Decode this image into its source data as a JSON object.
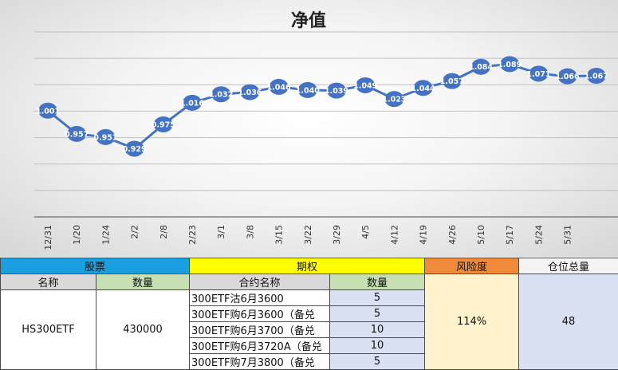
{
  "chart_data": {
    "type": "line",
    "title": "净值",
    "categories": [
      "12/31",
      "1/20",
      "1/24",
      "2/2",
      "2/8",
      "2/23",
      "3/1",
      "3/8",
      "3/15",
      "3/22",
      "3/29",
      "4/5",
      "4/12",
      "4/19",
      "4/26",
      "5/10",
      "5/17",
      "5/24",
      "5/31"
    ],
    "x": [
      "12/31",
      "1/20",
      "1/24",
      "2/2",
      "2/8",
      "2/23",
      "3/1",
      "3/8",
      "3/15",
      "3/22",
      "3/29",
      "4/5",
      "4/12",
      "4/19",
      "4/26",
      "5/10",
      "5/17",
      "5/24",
      "5/31",
      ""
    ],
    "series": [
      {
        "values": [
          1.001,
          0.957,
          0.951,
          0.929,
          0.975,
          1.016,
          1.032,
          1.036,
          1.046,
          1.04,
          1.039,
          1.049,
          1.023,
          1.044,
          1.057,
          1.084,
          1.089,
          1.071,
          1.066,
          1.067
        ]
      }
    ],
    "data_labels": [
      "1.001",
      "0.957",
      "0.951",
      "0.929",
      "0.975",
      "1.016",
      "1.032",
      "1.036",
      "1.046",
      "1.040",
      "1.039",
      "1.049",
      "1.023",
      "1.044",
      "1.057",
      "1.084",
      "1.089",
      "1.071",
      "1.066",
      "1.067"
    ],
    "ylim": [
      0.8,
      1.15
    ],
    "grid": true,
    "line_color": "#4472c4",
    "marker_color": "#4472c4"
  },
  "table": {
    "stock_header": "股票",
    "option_header": "期权",
    "risk_header": "风险度",
    "total_header": "仓位总量",
    "name_col": "名称",
    "qty_col": "数量",
    "contract_col": "合约名称",
    "opt_qty_col": "数量",
    "stock_name": "HS300ETF",
    "stock_qty": "430000",
    "options": [
      {
        "name": "300ETF沽6月3600",
        "qty": "5"
      },
      {
        "name": "300ETF购6月3600（备兑",
        "qty": "5"
      },
      {
        "name": "300ETF购6月3700（备兑",
        "qty": "10"
      },
      {
        "name": "300ETF购6月3720A（备兑",
        "qty": "10"
      },
      {
        "name": "300ETF购7月3800（备兑",
        "qty": "5"
      }
    ],
    "risk_value": "114%",
    "total_value": "48",
    "colors": {
      "stock_header": "#1aa0e0",
      "option_header": "#ffff00",
      "risk_header": "#ee8a3a",
      "qty_header": "#c6e0b4",
      "opt_qty_cells": "#d9e1f2",
      "risk_cell": "#fff2cc"
    }
  }
}
